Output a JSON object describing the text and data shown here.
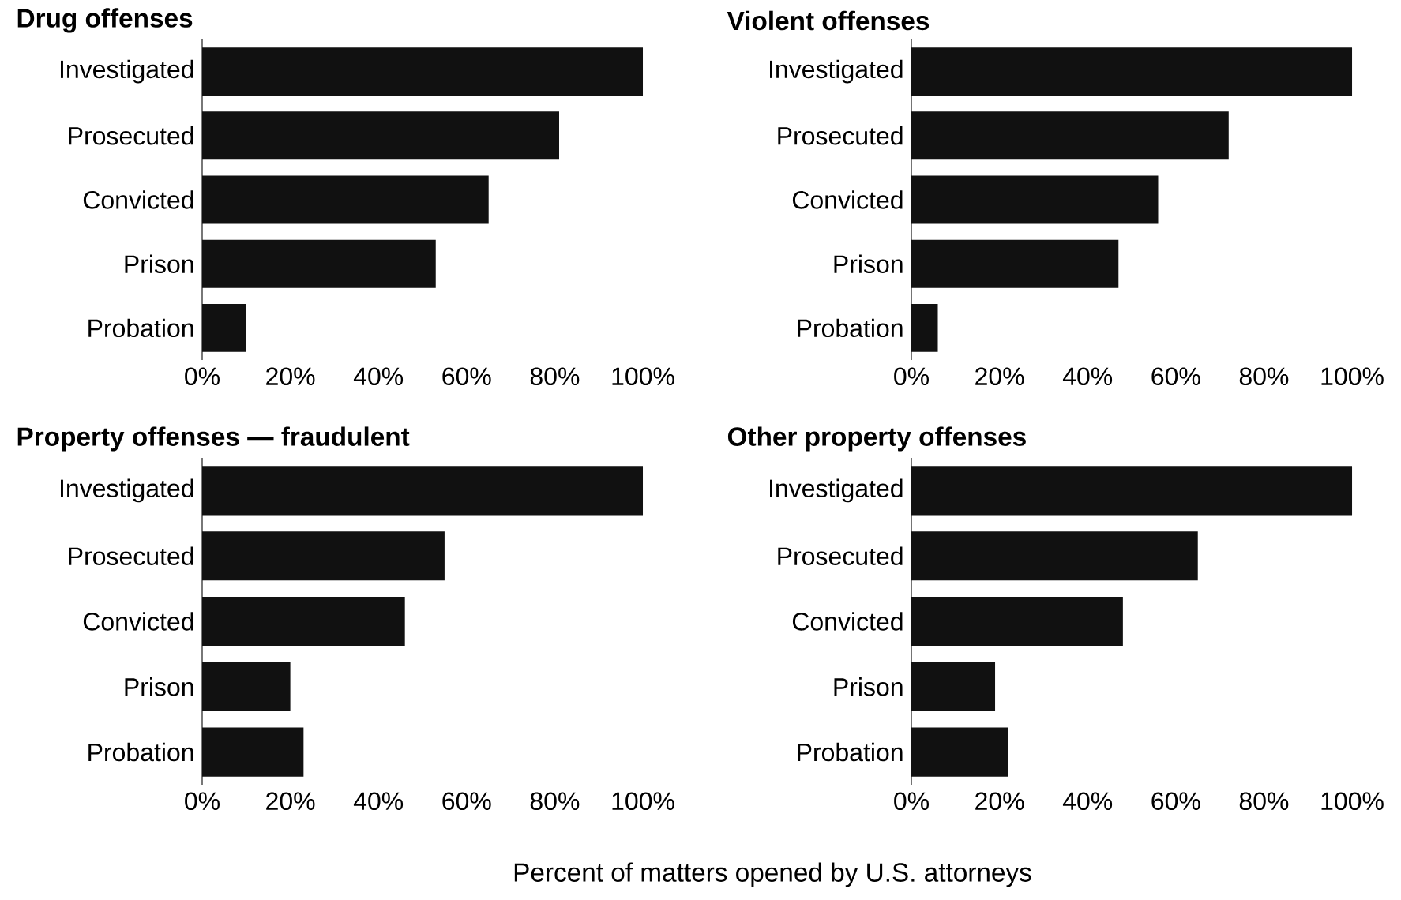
{
  "chart_data": [
    {
      "type": "bar",
      "orientation": "horizontal",
      "title": "Drug offenses",
      "categories": [
        "Investigated",
        "Prosecuted",
        "Convicted",
        "Prison",
        "Probation"
      ],
      "values": [
        100,
        81,
        65,
        53,
        10
      ],
      "color": "#111111",
      "xlim": [
        0,
        100
      ],
      "xticks": [
        {
          "value": 0,
          "label": "0%"
        },
        {
          "value": 20,
          "label": "20%"
        },
        {
          "value": 40,
          "label": "40%"
        },
        {
          "value": 60,
          "label": "60%"
        },
        {
          "value": 80,
          "label": "80%"
        },
        {
          "value": 100,
          "label": "100%"
        }
      ]
    },
    {
      "type": "bar",
      "orientation": "horizontal",
      "title": "Violent offenses",
      "categories": [
        "Investigated",
        "Prosecuted",
        "Convicted",
        "Prison",
        "Probation"
      ],
      "values": [
        100,
        72,
        56,
        47,
        6
      ],
      "color": "#111111",
      "xlim": [
        0,
        100
      ],
      "xticks": [
        {
          "value": 0,
          "label": "0%"
        },
        {
          "value": 20,
          "label": "20%"
        },
        {
          "value": 40,
          "label": "40%"
        },
        {
          "value": 60,
          "label": "60%"
        },
        {
          "value": 80,
          "label": "80%"
        },
        {
          "value": 100,
          "label": "100%"
        }
      ]
    },
    {
      "type": "bar",
      "orientation": "horizontal",
      "title": "Property offenses — fraudulent",
      "categories": [
        "Investigated",
        "Prosecuted",
        "Convicted",
        "Prison",
        "Probation"
      ],
      "values": [
        100,
        55,
        46,
        20,
        23
      ],
      "color": "#111111",
      "xlim": [
        0,
        100
      ],
      "xticks": [
        {
          "value": 0,
          "label": "0%"
        },
        {
          "value": 20,
          "label": "20%"
        },
        {
          "value": 40,
          "label": "40%"
        },
        {
          "value": 60,
          "label": "60%"
        },
        {
          "value": 80,
          "label": "80%"
        },
        {
          "value": 100,
          "label": "100%"
        }
      ]
    },
    {
      "type": "bar",
      "orientation": "horizontal",
      "title": "Other property offenses",
      "xlabel": "Percent of matters opened by U.S. attorneys",
      "categories": [
        "Investigated",
        "Prosecuted",
        "Convicted",
        "Prison",
        "Probation"
      ],
      "values": [
        100,
        65,
        48,
        19,
        22
      ],
      "color": "#111111",
      "xlim": [
        0,
        100
      ],
      "xticks": [
        {
          "value": 0,
          "label": "0%"
        },
        {
          "value": 20,
          "label": "20%"
        },
        {
          "value": 40,
          "label": "40%"
        },
        {
          "value": 60,
          "label": "60%"
        },
        {
          "value": 80,
          "label": "80%"
        },
        {
          "value": 100,
          "label": "100%"
        }
      ]
    }
  ]
}
